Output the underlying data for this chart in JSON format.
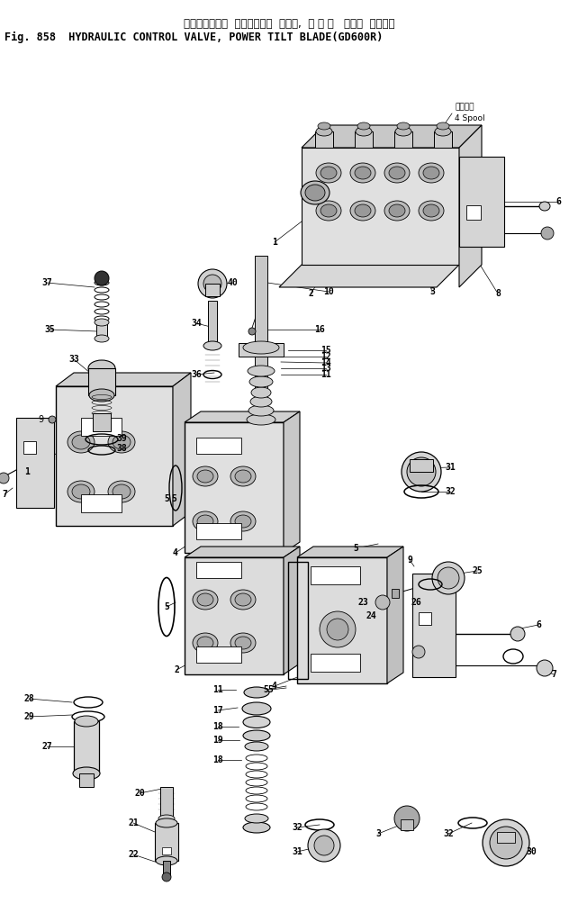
{
  "title_japanese": "ハイドロリック  コントロール  バルブ,  パ ワ ー   チルト  ブレード",
  "title_english": "Fig. 858  HYDRAULIC CONTROL VALVE, POWER TILT BLADE(GD600R)",
  "background_color": "#ffffff",
  "line_color": "#000000",
  "lw": 0.7,
  "label_fontsize": 7.0,
  "title_fontsize_jp": 8.5,
  "title_fontsize_en": 8.5,
  "spool_label_jp": "スプール",
  "spool_label_en": "4 Spool"
}
